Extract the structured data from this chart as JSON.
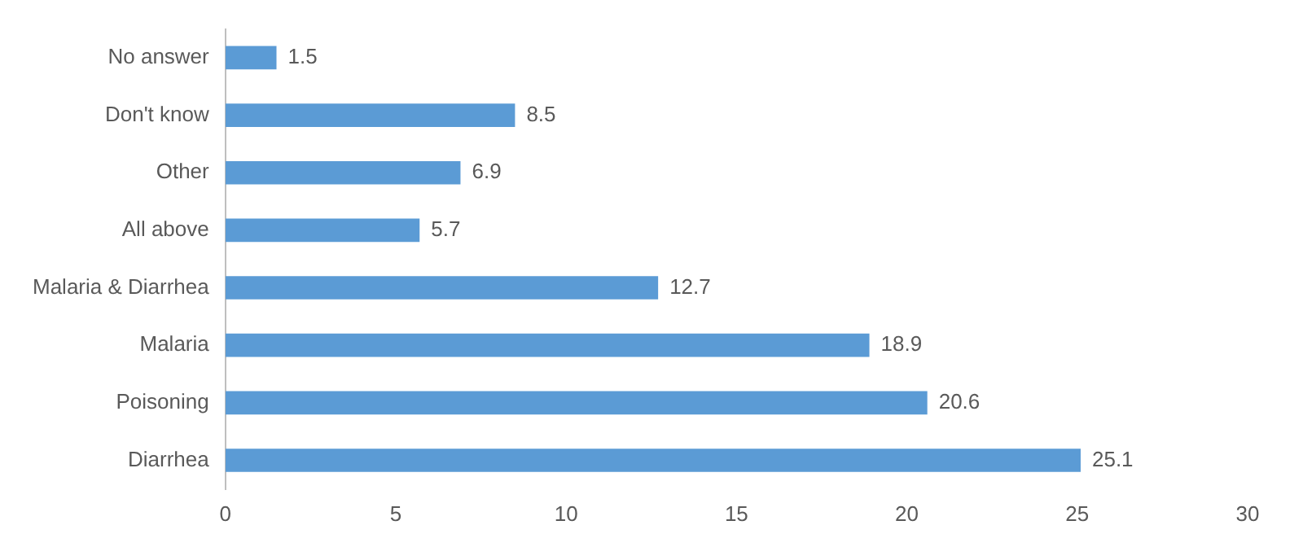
{
  "chart_data": {
    "type": "bar",
    "orientation": "horizontal",
    "categories": [
      "No answer",
      "Don't know",
      "Other",
      "All above",
      "Malaria & Diarrhea",
      "Malaria",
      "Poisoning",
      "Diarrhea"
    ],
    "values": [
      1.5,
      8.5,
      6.9,
      5.7,
      12.7,
      18.9,
      20.6,
      25.1
    ],
    "color": "#5b9bd5",
    "xlim": [
      0,
      30
    ],
    "xticks": [
      0,
      5,
      10,
      15,
      20,
      25,
      30
    ],
    "grid": false,
    "data_labels": true,
    "legend": false
  }
}
